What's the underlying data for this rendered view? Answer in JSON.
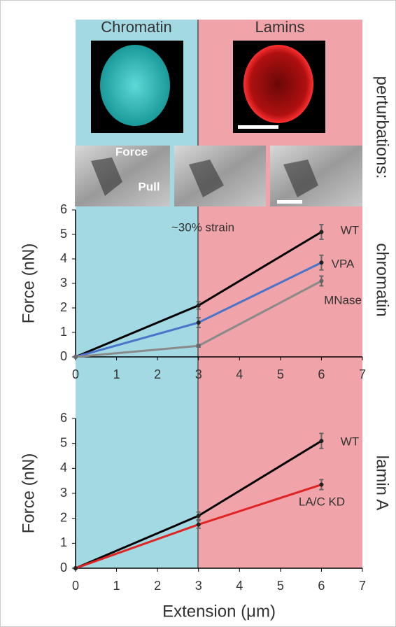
{
  "headers": {
    "left": "Chromatin",
    "right": "Lamins"
  },
  "side_title": "perturbations:",
  "image_labels": {
    "force": "Force",
    "pull": "Pull"
  },
  "chart_data": [
    {
      "type": "line",
      "side_label": "chromatin",
      "annotation": "~30% strain",
      "ylabel": "Force (nN)",
      "xlim": [
        0,
        7
      ],
      "ylim": [
        0,
        6
      ],
      "xticks": [
        0,
        1,
        2,
        3,
        4,
        5,
        6,
        7
      ],
      "yticks": [
        0,
        1,
        2,
        3,
        4,
        5,
        6
      ],
      "x": [
        0,
        3,
        6
      ],
      "series": [
        {
          "name": "WT",
          "color": "#000000",
          "values": [
            0,
            2.1,
            5.1
          ],
          "errors": [
            null,
            0.15,
            0.3
          ]
        },
        {
          "name": "VPA",
          "color": "#4a74c9",
          "values": [
            0,
            1.4,
            3.85
          ],
          "errors": [
            null,
            0.2,
            0.3
          ]
        },
        {
          "name": "MNase",
          "color": "#8a8a8a",
          "values": [
            0,
            0.45,
            3.1
          ],
          "errors": [
            null,
            0.05,
            0.2
          ]
        }
      ]
    },
    {
      "type": "line",
      "side_label": "lamin A",
      "xlabel": "Extension (μm)",
      "ylabel": "Force (nN)",
      "xlim": [
        0,
        7
      ],
      "ylim": [
        0,
        6
      ],
      "xticks": [
        0,
        1,
        2,
        3,
        4,
        5,
        6,
        7
      ],
      "yticks": [
        0,
        1,
        2,
        3,
        4,
        5,
        6
      ],
      "x": [
        0,
        3,
        6
      ],
      "series": [
        {
          "name": "WT",
          "color": "#000000",
          "values": [
            0,
            2.1,
            5.1
          ],
          "errors": [
            null,
            0.15,
            0.3
          ]
        },
        {
          "name": "LA/C KD",
          "color": "#e02424",
          "values": [
            0,
            1.75,
            3.35
          ],
          "errors": [
            null,
            0.15,
            0.2
          ]
        }
      ]
    }
  ]
}
